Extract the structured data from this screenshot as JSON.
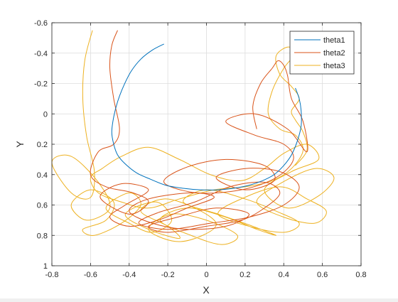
{
  "chart_data": {
    "type": "line",
    "title": "",
    "xlabel": "X",
    "ylabel": "Y",
    "xlim": [
      -0.8,
      0.8
    ],
    "ylim": [
      -0.6,
      1.0
    ],
    "y_reversed": true,
    "grid": true,
    "legend_position": "top-right",
    "x_ticks": [
      -0.8,
      -0.6,
      -0.4,
      -0.2,
      0,
      0.2,
      0.4,
      0.6,
      0.8
    ],
    "x_tick_labels": [
      "-0.8",
      "-0.6",
      "-0.4",
      "-0.2",
      "0",
      "0.2",
      "0.4",
      "0.6",
      "0.8"
    ],
    "y_ticks": [
      -0.6,
      -0.4,
      -0.2,
      0,
      0.2,
      0.4,
      0.6,
      0.8,
      1.0
    ],
    "y_tick_labels": [
      "-0.6",
      "-0.4",
      "-0.2",
      "0",
      "0.2",
      "0.4",
      "0.6",
      "0.8",
      "1"
    ],
    "series": [
      {
        "name": "theta1",
        "color": "#0072BD",
        "x": [
          -0.22,
          -0.28,
          -0.34,
          -0.39,
          -0.43,
          -0.46,
          -0.48,
          -0.49,
          -0.48,
          -0.46,
          -0.42,
          -0.36,
          -0.29,
          -0.21,
          -0.12,
          -0.03,
          0.06,
          0.14,
          0.22,
          0.29,
          0.35,
          0.4,
          0.44,
          0.47,
          0.49,
          0.49,
          0.48,
          0.46
        ],
        "y": [
          -0.46,
          -0.42,
          -0.36,
          -0.28,
          -0.18,
          -0.08,
          0.02,
          0.12,
          0.2,
          0.27,
          0.33,
          0.39,
          0.43,
          0.47,
          0.49,
          0.5,
          0.5,
          0.49,
          0.47,
          0.44,
          0.4,
          0.34,
          0.27,
          0.18,
          0.08,
          -0.02,
          -0.1,
          -0.17
        ]
      },
      {
        "name": "theta2",
        "color": "#D95319",
        "x": [
          -0.46,
          -0.49,
          -0.5,
          -0.48,
          -0.45,
          -0.48,
          -0.56,
          -0.6,
          -0.52,
          -0.38,
          -0.3,
          -0.4,
          -0.55,
          -0.44,
          -0.3,
          -0.42,
          -0.5,
          -0.4,
          -0.25,
          -0.1,
          0.04,
          -0.08,
          -0.3,
          -0.4,
          -0.28,
          -0.1,
          0.1,
          0.22,
          0.05,
          -0.15,
          -0.3,
          -0.2,
          0.0,
          0.18,
          0.3,
          0.38,
          0.3,
          0.12,
          -0.06,
          -0.25,
          -0.35,
          -0.2,
          0.02,
          0.22,
          0.4,
          0.48,
          0.38,
          0.2,
          0.05,
          0.2,
          0.35,
          0.3,
          0.1,
          -0.1,
          -0.22,
          -0.05,
          0.18,
          0.36,
          0.45,
          0.4,
          0.25,
          0.1,
          0.25,
          0.42,
          0.52,
          0.5,
          0.44,
          0.42,
          0.4,
          0.37,
          0.34,
          0.28,
          0.24,
          0.26
        ],
        "y": [
          -0.55,
          -0.45,
          -0.3,
          -0.1,
          0.1,
          0.2,
          0.25,
          0.4,
          0.48,
          0.52,
          0.58,
          0.66,
          0.55,
          0.46,
          0.5,
          0.6,
          0.68,
          0.74,
          0.7,
          0.62,
          0.55,
          0.52,
          0.56,
          0.64,
          0.72,
          0.76,
          0.74,
          0.66,
          0.62,
          0.68,
          0.74,
          0.78,
          0.74,
          0.7,
          0.62,
          0.52,
          0.45,
          0.48,
          0.58,
          0.65,
          0.72,
          0.76,
          0.72,
          0.68,
          0.6,
          0.48,
          0.38,
          0.36,
          0.42,
          0.5,
          0.44,
          0.34,
          0.3,
          0.35,
          0.45,
          0.52,
          0.5,
          0.42,
          0.3,
          0.2,
          0.14,
          0.05,
          0.0,
          0.1,
          0.25,
          0.05,
          -0.1,
          -0.25,
          -0.32,
          -0.35,
          -0.3,
          -0.2,
          -0.05,
          0.1
        ]
      },
      {
        "name": "theta3",
        "color": "#EDB120",
        "x": [
          -0.59,
          -0.63,
          -0.64,
          -0.62,
          -0.58,
          -0.6,
          -0.7,
          -0.8,
          -0.7,
          -0.56,
          -0.5,
          -0.62,
          -0.7,
          -0.6,
          -0.48,
          -0.52,
          -0.64,
          -0.58,
          -0.44,
          -0.34,
          -0.4,
          -0.52,
          -0.4,
          -0.28,
          -0.18,
          -0.26,
          -0.42,
          -0.3,
          -0.14,
          -0.2,
          -0.34,
          -0.22,
          -0.06,
          0.05,
          -0.02,
          -0.16,
          -0.3,
          -0.18,
          0.0,
          0.16,
          0.08,
          -0.08,
          -0.24,
          -0.1,
          0.1,
          0.26,
          0.36,
          0.24,
          0.06,
          -0.12,
          0.0,
          0.2,
          0.36,
          0.48,
          0.4,
          0.22,
          0.06,
          0.18,
          0.38,
          0.52,
          0.62,
          0.56,
          0.4,
          0.26,
          0.38,
          0.56,
          0.66,
          0.58,
          0.42,
          0.3,
          0.44,
          0.58,
          0.52,
          0.4,
          0.3,
          0.18,
          0.02,
          -0.14,
          -0.3,
          -0.44,
          -0.54,
          -0.6,
          -0.56,
          -0.44,
          -0.3,
          -0.14,
          0.04,
          0.2,
          0.34,
          0.44,
          0.5,
          0.46,
          0.38,
          0.32,
          0.34,
          0.4,
          0.46,
          0.42,
          0.36,
          0.38,
          0.44,
          0.48,
          0.44,
          0.46,
          0.5,
          0.52,
          0.46
        ],
        "y": [
          -0.55,
          -0.35,
          -0.1,
          0.15,
          0.38,
          0.55,
          0.52,
          0.32,
          0.28,
          0.45,
          0.62,
          0.7,
          0.6,
          0.5,
          0.58,
          0.7,
          0.76,
          0.8,
          0.72,
          0.6,
          0.52,
          0.62,
          0.72,
          0.78,
          0.7,
          0.58,
          0.66,
          0.76,
          0.82,
          0.74,
          0.64,
          0.56,
          0.62,
          0.72,
          0.8,
          0.84,
          0.76,
          0.66,
          0.7,
          0.8,
          0.86,
          0.8,
          0.7,
          0.62,
          0.68,
          0.76,
          0.8,
          0.74,
          0.66,
          0.58,
          0.5,
          0.56,
          0.64,
          0.72,
          0.78,
          0.74,
          0.66,
          0.56,
          0.48,
          0.56,
          0.64,
          0.72,
          0.68,
          0.58,
          0.46,
          0.36,
          0.42,
          0.54,
          0.62,
          0.5,
          0.38,
          0.3,
          0.2,
          0.26,
          0.36,
          0.44,
          0.4,
          0.3,
          0.22,
          0.28,
          0.36,
          0.42,
          0.52,
          0.58,
          0.62,
          0.56,
          0.5,
          0.48,
          0.44,
          0.36,
          0.24,
          0.14,
          0.1,
          0.0,
          -0.15,
          -0.3,
          -0.4,
          -0.44,
          -0.38,
          -0.26,
          -0.18,
          -0.1,
          -0.02,
          0.04,
          0.12,
          0.24,
          0.34
        ]
      }
    ]
  }
}
